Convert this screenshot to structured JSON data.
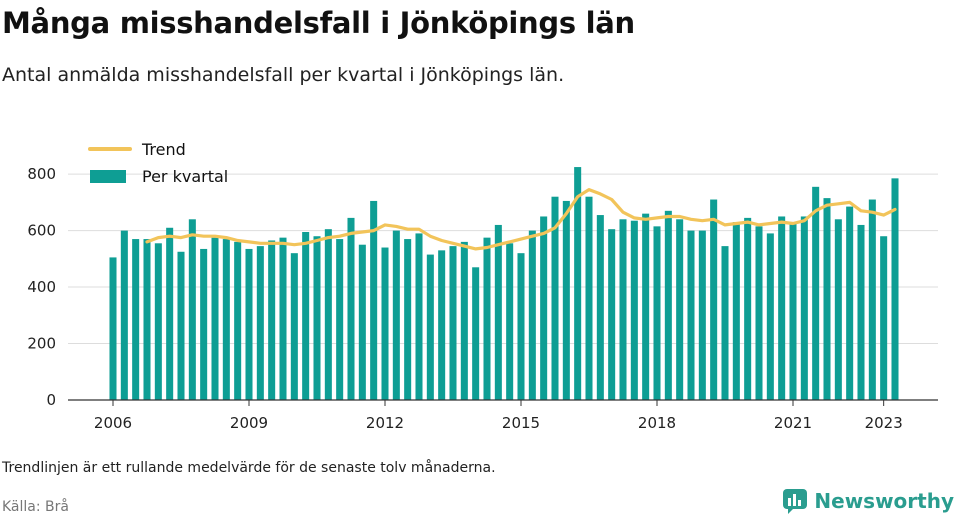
{
  "title": "Många misshandelsfall i Jönköpings län",
  "subtitle": "Antal anmälda misshandelsfall per kvartal i Jönköpings län.",
  "note": "Trendlinjen är ett rullande medelvärde för de senaste tolv månaderna.",
  "source": "Källa: Brå",
  "brand": {
    "name": "Newsworthy",
    "icon": "bar-chart-logo-icon",
    "color": "#2a9d8f"
  },
  "colors": {
    "bars": "#0e9e94",
    "trend": "#f2c45a",
    "grid": "#dddddd",
    "axis": "#333333"
  },
  "chart_data": {
    "type": "bar",
    "x_start": "2006 Q1",
    "x_end": "2023 Q2",
    "ylim": [
      0,
      850
    ],
    "yticks": [
      0,
      200,
      400,
      600,
      800
    ],
    "xticks": [
      "2006",
      "2009",
      "2012",
      "2015",
      "2018",
      "2021",
      "2023"
    ],
    "legend_position": "top-left",
    "grid": true,
    "series": [
      {
        "name": "Per kvartal",
        "kind": "bar",
        "values": [
          505,
          600,
          570,
          570,
          555,
          610,
          525,
          640,
          535,
          575,
          570,
          560,
          535,
          545,
          565,
          575,
          520,
          595,
          580,
          605,
          570,
          645,
          550,
          705,
          540,
          600,
          570,
          590,
          515,
          530,
          545,
          560,
          470,
          575,
          620,
          555,
          520,
          600,
          650,
          720,
          705,
          825,
          720,
          655,
          605,
          640,
          635,
          660,
          615,
          670,
          640,
          600,
          600,
          710,
          545,
          630,
          645,
          615,
          590,
          650,
          630,
          650,
          755,
          715,
          640,
          685,
          620,
          710,
          580,
          785
        ]
      },
      {
        "name": "Trend",
        "kind": "line",
        "values": [
          null,
          null,
          null,
          560,
          575,
          580,
          575,
          585,
          580,
          580,
          575,
          565,
          560,
          555,
          555,
          555,
          550,
          555,
          565,
          575,
          580,
          590,
          595,
          600,
          620,
          615,
          605,
          605,
          580,
          565,
          555,
          545,
          535,
          540,
          550,
          560,
          570,
          580,
          590,
          610,
          660,
          720,
          745,
          730,
          710,
          665,
          645,
          640,
          645,
          650,
          650,
          640,
          635,
          640,
          620,
          625,
          630,
          620,
          625,
          630,
          625,
          635,
          670,
          690,
          695,
          700,
          670,
          665,
          655,
          675
        ]
      }
    ]
  }
}
